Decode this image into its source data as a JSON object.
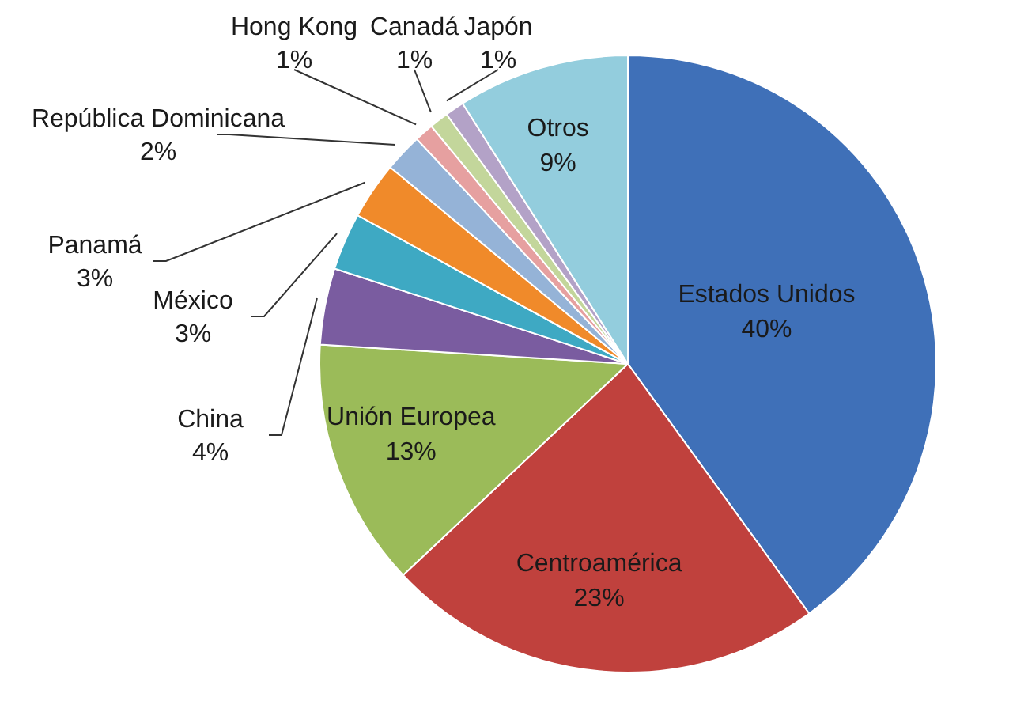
{
  "chart_data": {
    "type": "pie",
    "categories": [
      "Estados Unidos",
      "Centroamérica",
      "Unión Europea",
      "China",
      "México",
      "Panamá",
      "República Dominicana",
      "Hong Kong",
      "Canadá",
      "Japón",
      "Otros"
    ],
    "values": [
      40,
      23,
      13,
      4,
      3,
      3,
      2,
      1,
      1,
      1,
      9
    ],
    "value_labels": [
      "40%",
      "23%",
      "13%",
      "4%",
      "3%",
      "3%",
      "2%",
      "1%",
      "1%",
      "1%",
      "9%"
    ],
    "colors": [
      "#3f70b8",
      "#c0413d",
      "#9bbb59",
      "#7a5ca0",
      "#3ea9c3",
      "#f08a2a",
      "#95b3d7",
      "#e6a0a0",
      "#c3d69b",
      "#b3a2c7",
      "#93cddd"
    ],
    "legend": false
  }
}
